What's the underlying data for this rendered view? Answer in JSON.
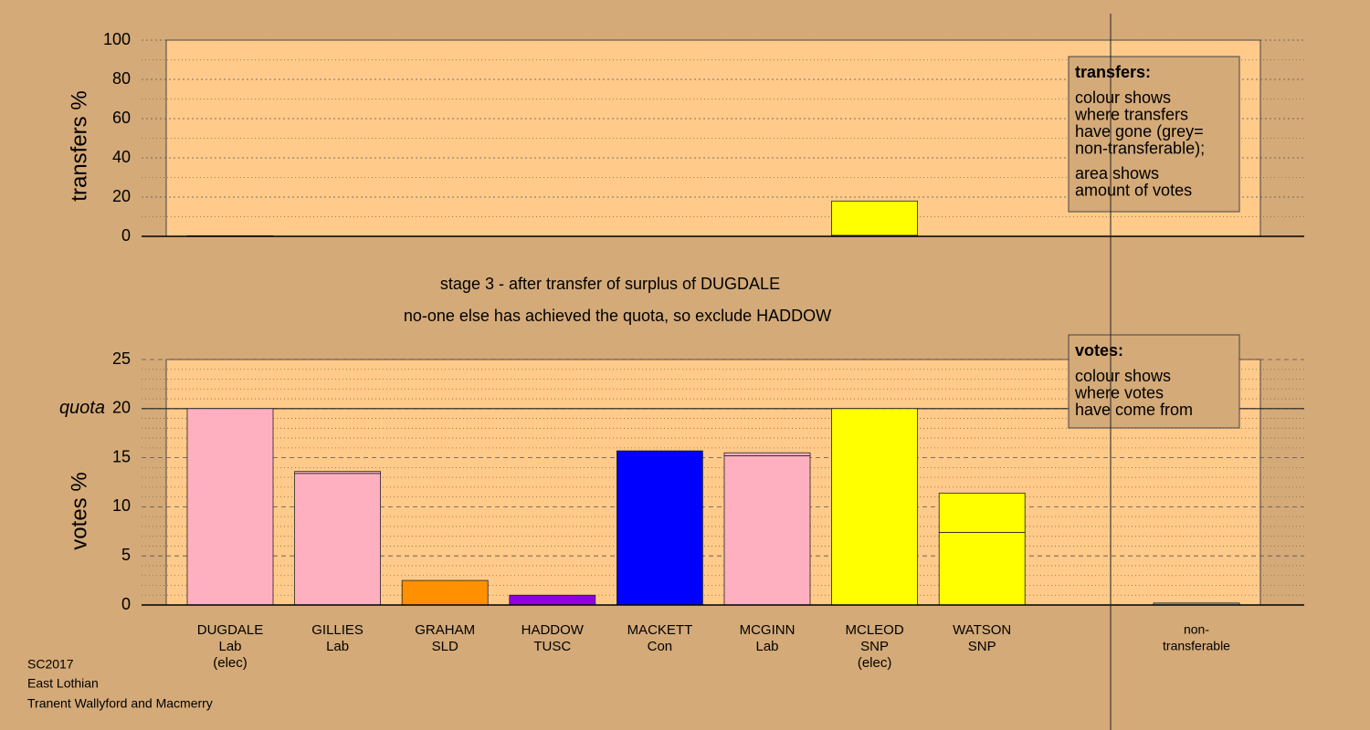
{
  "chart_data": [
    {
      "type": "bar",
      "ylabel": "transfers %",
      "categories": [
        [
          "DUGDALE",
          "Lab",
          "(elec)"
        ],
        [
          "GILLIES",
          "Lab"
        ],
        [
          "GRAHAM",
          "SLD"
        ],
        [
          "HADDOW",
          "TUSC"
        ],
        [
          "MACKETT",
          "Con"
        ],
        [
          "MCGINN",
          "Lab"
        ],
        [
          "MCLEOD",
          "SNP",
          "(elec)"
        ],
        [
          "WATSON",
          "SNP"
        ],
        null,
        [
          "non-",
          "transferable"
        ]
      ],
      "series": [
        {
          "values": [
            0.3,
            0,
            0,
            0,
            0,
            0,
            0.5,
            0,
            null,
            0
          ],
          "colors": [
            "#ffb0c0",
            "#ffb0c0",
            "#ff9000",
            "#9000e0",
            "#0000ff",
            "#ffb0c0",
            "#0000ff",
            "#ffff00",
            null,
            "#a0a0a0"
          ]
        },
        {
          "values": [
            0,
            0,
            0,
            0,
            0,
            0,
            17.5,
            0,
            null,
            0
          ],
          "colors": [
            "#ffb0c0",
            "#ffb0c0",
            "#ff9000",
            "#9000e0",
            "#0000ff",
            "#ffb0c0",
            "#ffff00",
            "#ffff00",
            null,
            "#a0a0a0"
          ]
        }
      ],
      "ylim": [
        0,
        100
      ],
      "yticks": [
        0,
        20,
        40,
        60,
        80,
        100
      ],
      "grid": true,
      "note": {
        "title": "transfers:",
        "paragraphs": [
          [
            "colour shows",
            "where transfers",
            "have gone (grey=",
            "non-transferable);"
          ],
          [
            "area shows",
            "amount of votes"
          ]
        ]
      }
    },
    {
      "type": "bar",
      "ylabel": "votes %",
      "series": [
        {
          "values": [
            20,
            13.4,
            2.5,
            1.0,
            15.7,
            15.2,
            20,
            7.4,
            null,
            0.2
          ],
          "colors": [
            "#ffb0c0",
            "#ffb0c0",
            "#ff9000",
            "#9000e0",
            "#0000ff",
            "#ffb0c0",
            "#ffff00",
            "#ffff00",
            null,
            "#a0a0a0"
          ]
        },
        {
          "values": [
            0,
            0.2,
            0,
            0,
            0,
            0.3,
            0,
            4.0,
            null,
            0
          ],
          "colors": [
            "#ffb0c0",
            "#ffb0c0",
            "#ff9000",
            "#9000e0",
            "#0000ff",
            "#ffb0c0",
            "#ffff00",
            "#ffff00",
            null,
            "#a0a0a0"
          ]
        }
      ],
      "ylim": [
        0,
        25
      ],
      "yticks": [
        0,
        5,
        10,
        15,
        20,
        25
      ],
      "grid": true,
      "quota": {
        "value": 20,
        "label": "quota"
      },
      "note": {
        "title": "votes:",
        "paragraphs": [
          [
            "colour shows",
            "where votes",
            "have come from"
          ]
        ]
      }
    }
  ],
  "stage": [
    "stage 3 - after transfer of surplus of DUGDALE",
    "no-one else has achieved the quota, so exclude HADDOW"
  ],
  "footer": [
    "SC2017",
    "East Lothian",
    "Tranent Wallyford and Macmerry"
  ]
}
